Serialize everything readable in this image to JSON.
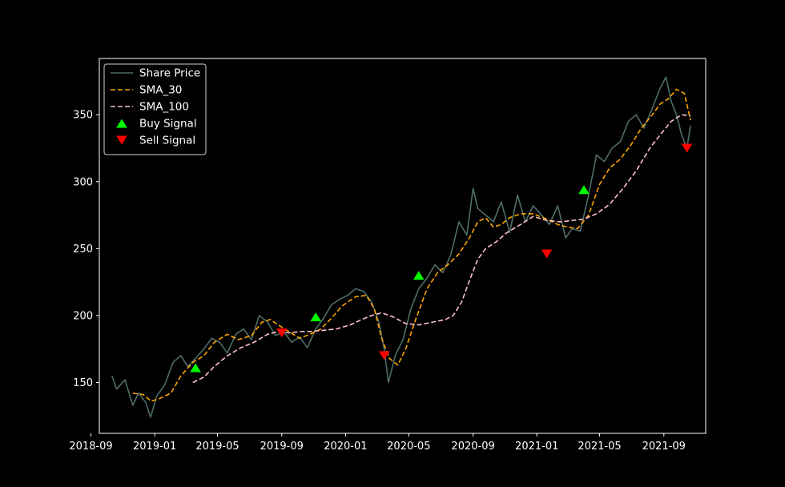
{
  "chart_data": {
    "type": "line",
    "title": "",
    "xlabel": "",
    "ylabel": "",
    "x_range": [
      "2018-09-17",
      "2021-11-20"
    ],
    "ylim": [
      112,
      392
    ],
    "x_ticks": [
      {
        "date": "2018-09-01",
        "label": "2018-09"
      },
      {
        "date": "2019-01-01",
        "label": "2019-01"
      },
      {
        "date": "2019-05-01",
        "label": "2019-05"
      },
      {
        "date": "2019-09-01",
        "label": "2019-09"
      },
      {
        "date": "2020-01-01",
        "label": "2020-01"
      },
      {
        "date": "2020-05-01",
        "label": "2020-05"
      },
      {
        "date": "2020-09-01",
        "label": "2020-09"
      },
      {
        "date": "2021-01-01",
        "label": "2021-01"
      },
      {
        "date": "2021-05-01",
        "label": "2021-05"
      },
      {
        "date": "2021-09-01",
        "label": "2021-09"
      }
    ],
    "y_ticks": [
      150,
      200,
      250,
      300,
      350
    ],
    "grid": false,
    "legend_position": "top-left",
    "series": [
      {
        "name": "Share Price",
        "kind": "line",
        "color": "#4f6e66",
        "x": [
          "2018-10-11",
          "2018-10-20",
          "2018-11-05",
          "2018-11-20",
          "2018-12-01",
          "2018-12-15",
          "2018-12-24",
          "2019-01-05",
          "2019-01-20",
          "2019-02-05",
          "2019-02-20",
          "2019-03-05",
          "2019-03-20",
          "2019-04-05",
          "2019-04-20",
          "2019-05-05",
          "2019-05-20",
          "2019-06-05",
          "2019-06-20",
          "2019-07-05",
          "2019-07-20",
          "2019-08-05",
          "2019-08-20",
          "2019-09-05",
          "2019-09-20",
          "2019-10-05",
          "2019-10-20",
          "2019-11-05",
          "2019-11-20",
          "2019-12-05",
          "2019-12-20",
          "2020-01-05",
          "2020-01-20",
          "2020-02-05",
          "2020-02-20",
          "2020-03-05",
          "2020-03-15",
          "2020-03-23",
          "2020-04-05",
          "2020-04-20",
          "2020-05-05",
          "2020-05-20",
          "2020-06-05",
          "2020-06-20",
          "2020-07-05",
          "2020-07-20",
          "2020-08-05",
          "2020-08-20",
          "2020-09-01",
          "2020-09-10",
          "2020-09-25",
          "2020-10-10",
          "2020-10-25",
          "2020-11-10",
          "2020-11-25",
          "2020-12-10",
          "2020-12-25",
          "2021-01-10",
          "2021-01-25",
          "2021-02-10",
          "2021-02-25",
          "2021-03-10",
          "2021-03-25",
          "2021-04-10",
          "2021-04-25",
          "2021-05-10",
          "2021-05-25",
          "2021-06-10",
          "2021-06-25",
          "2021-07-10",
          "2021-07-25",
          "2021-08-10",
          "2021-08-25",
          "2021-09-05",
          "2021-09-15",
          "2021-09-25",
          "2021-10-05",
          "2021-10-15",
          "2021-10-22"
        ],
        "values": [
          155,
          145,
          152,
          133,
          142,
          135,
          124,
          140,
          148,
          165,
          170,
          162,
          168,
          175,
          183,
          180,
          172,
          186,
          190,
          182,
          200,
          195,
          185,
          188,
          180,
          184,
          176,
          190,
          198,
          208,
          212,
          215,
          220,
          218,
          210,
          195,
          175,
          150,
          170,
          182,
          205,
          220,
          228,
          238,
          232,
          245,
          270,
          260,
          295,
          280,
          275,
          270,
          285,
          262,
          290,
          270,
          282,
          275,
          268,
          282,
          258,
          265,
          263,
          290,
          320,
          315,
          325,
          330,
          345,
          350,
          340,
          355,
          370,
          378,
          360,
          350,
          335,
          325,
          342
        ]
      },
      {
        "name": "SMA_30",
        "kind": "dashed",
        "color": "#ffa500",
        "x": [
          "2018-11-20",
          "2018-12-10",
          "2018-12-25",
          "2019-01-10",
          "2019-02-01",
          "2019-02-20",
          "2019-03-15",
          "2019-04-05",
          "2019-04-25",
          "2019-05-20",
          "2019-06-10",
          "2019-07-05",
          "2019-07-25",
          "2019-08-10",
          "2019-08-25",
          "2019-09-15",
          "2019-10-05",
          "2019-10-25",
          "2019-11-15",
          "2019-12-05",
          "2019-12-25",
          "2020-01-20",
          "2020-02-10",
          "2020-02-25",
          "2020-03-10",
          "2020-03-25",
          "2020-04-10",
          "2020-04-25",
          "2020-05-15",
          "2020-06-05",
          "2020-06-25",
          "2020-07-15",
          "2020-08-05",
          "2020-08-25",
          "2020-09-10",
          "2020-09-25",
          "2020-10-10",
          "2020-10-25",
          "2020-11-10",
          "2020-12-01",
          "2020-12-25",
          "2021-01-20",
          "2021-02-10",
          "2021-03-01",
          "2021-03-20",
          "2021-04-10",
          "2021-05-01",
          "2021-05-20",
          "2021-06-10",
          "2021-07-01",
          "2021-07-20",
          "2021-08-10",
          "2021-08-25",
          "2021-09-10",
          "2021-09-25",
          "2021-10-10",
          "2021-10-22"
        ],
        "values": [
          142,
          141,
          136,
          138,
          142,
          155,
          165,
          170,
          180,
          186,
          182,
          185,
          195,
          197,
          193,
          188,
          183,
          186,
          190,
          198,
          207,
          214,
          215,
          205,
          183,
          168,
          163,
          175,
          198,
          220,
          232,
          238,
          246,
          258,
          270,
          273,
          266,
          268,
          273,
          276,
          276,
          272,
          268,
          266,
          265,
          275,
          298,
          310,
          317,
          328,
          340,
          350,
          358,
          362,
          369,
          366,
          346
        ]
      },
      {
        "name": "SMA_100",
        "kind": "dashed",
        "color": "#ffc0cb",
        "x": [
          "2019-03-15",
          "2019-04-05",
          "2019-04-25",
          "2019-05-20",
          "2019-06-15",
          "2019-07-10",
          "2019-08-05",
          "2019-08-25",
          "2019-09-15",
          "2019-10-05",
          "2019-10-25",
          "2019-11-20",
          "2019-12-15",
          "2020-01-10",
          "2020-02-01",
          "2020-02-20",
          "2020-03-10",
          "2020-04-01",
          "2020-04-25",
          "2020-05-20",
          "2020-06-15",
          "2020-07-10",
          "2020-07-25",
          "2020-08-10",
          "2020-08-25",
          "2020-09-10",
          "2020-09-25",
          "2020-10-15",
          "2020-11-05",
          "2020-12-01",
          "2020-12-25",
          "2021-01-20",
          "2021-02-15",
          "2021-03-10",
          "2021-04-01",
          "2021-04-25",
          "2021-05-20",
          "2021-06-15",
          "2021-07-10",
          "2021-08-05",
          "2021-08-25",
          "2021-09-15",
          "2021-10-05",
          "2021-10-22"
        ],
        "values": [
          150,
          154,
          162,
          170,
          176,
          180,
          186,
          188,
          187,
          188,
          188,
          189,
          190,
          193,
          197,
          200,
          202,
          199,
          194,
          193,
          195,
          197,
          200,
          210,
          226,
          242,
          250,
          255,
          262,
          268,
          274,
          271,
          270,
          271,
          272,
          276,
          283,
          295,
          308,
          325,
          335,
          345,
          350,
          349
        ]
      },
      {
        "name": "Buy Signal",
        "kind": "markers",
        "marker": "triangle-up",
        "color": "#00ff00",
        "x": [
          "2019-03-20",
          "2019-11-05",
          "2020-05-20",
          "2021-04-01"
        ],
        "values": [
          161,
          199,
          230,
          294
        ]
      },
      {
        "name": "Sell Signal",
        "kind": "markers",
        "marker": "triangle-down",
        "color": "#ff0000",
        "x": [
          "2019-09-01",
          "2020-03-15",
          "2021-01-20",
          "2021-10-15"
        ],
        "values": [
          187,
          170,
          246,
          325
        ]
      }
    ]
  }
}
